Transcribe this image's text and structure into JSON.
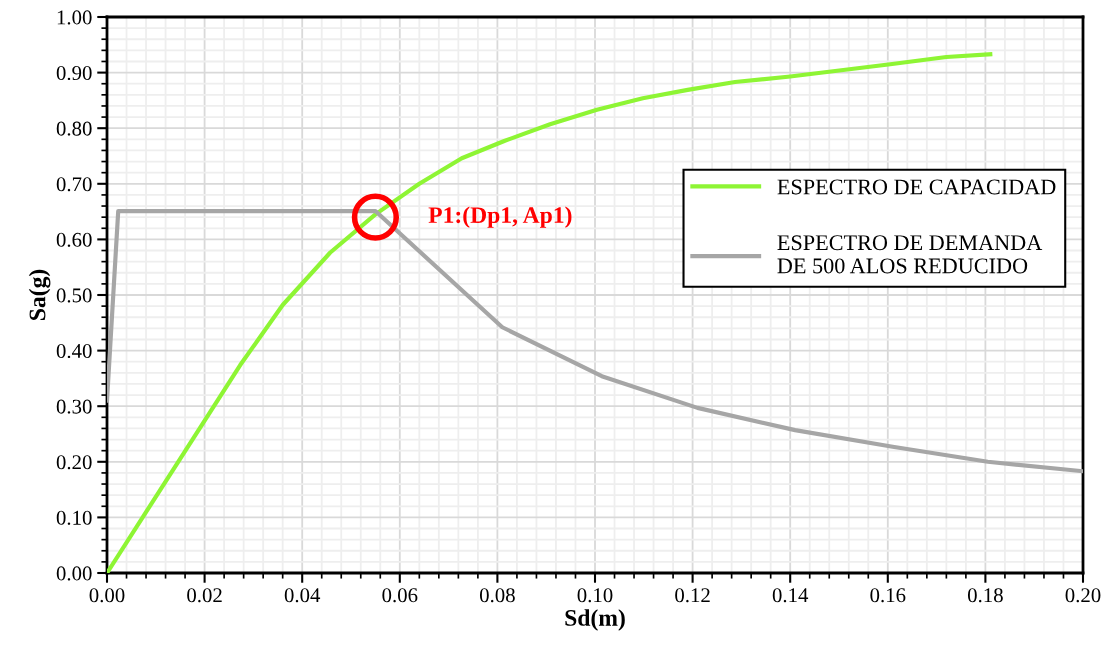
{
  "chart_data": {
    "type": "line",
    "xlabel": "Sd(m)",
    "ylabel": "Sa(g)",
    "xlim": [
      0,
      0.2
    ],
    "ylim": [
      0,
      1
    ],
    "xticks": [
      {
        "value": 0,
        "label": "0.00"
      },
      {
        "value": 0.02,
        "label": "0.02"
      },
      {
        "value": 0.04,
        "label": "0.04"
      },
      {
        "value": 0.06,
        "label": "0.06"
      },
      {
        "value": 0.08,
        "label": "0.08"
      },
      {
        "value": 0.1,
        "label": "0.10"
      },
      {
        "value": 0.12,
        "label": "0.12"
      },
      {
        "value": 0.14,
        "label": "0.14"
      },
      {
        "value": 0.16,
        "label": "0.16"
      },
      {
        "value": 0.18,
        "label": "0.18"
      },
      {
        "value": 0.2,
        "label": "0.20"
      }
    ],
    "yticks": [
      {
        "value": 0,
        "label": "0.00"
      },
      {
        "value": 0.1,
        "label": "0.10"
      },
      {
        "value": 0.2,
        "label": "0.20"
      },
      {
        "value": 0.3,
        "label": "0.30"
      },
      {
        "value": 0.4,
        "label": "0.40"
      },
      {
        "value": 0.5,
        "label": "0.50"
      },
      {
        "value": 0.6,
        "label": "0.60"
      },
      {
        "value": 0.7,
        "label": "0.70"
      },
      {
        "value": 0.8,
        "label": "0.80"
      },
      {
        "value": 0.9,
        "label": "0.90"
      },
      {
        "value": 1,
        "label": "1.00"
      }
    ],
    "grid": true,
    "legend": "right",
    "marker": "none",
    "line_style": "solid",
    "series": [
      {
        "name": "ESPECTRO DE CAPACIDAD",
        "color": "#8ef534",
        "x": [
          0,
          0.0273,
          0.036,
          0.0457,
          0.055,
          0.064,
          0.0727,
          0.0814,
          0.0908,
          0.1004,
          0.1098,
          0.119,
          0.1287,
          0.14,
          0.1605,
          0.172,
          0.181
        ],
        "values": [
          0,
          0.374,
          0.482,
          0.576,
          0.645,
          0.7,
          0.746,
          0.777,
          0.807,
          0.833,
          0.854,
          0.869,
          0.883,
          0.893,
          0.915,
          0.928,
          0.933
        ]
      },
      {
        "name": "ESPECTRO DE DEMANDA\nDE 500 ALOS REDUCIDO",
        "color": "#a6a6a6",
        "x": [
          0,
          0.0023,
          0.055,
          0.081,
          0.1014,
          0.121,
          0.141,
          0.161,
          0.1805,
          0.2
        ],
        "values": [
          0.31,
          0.651,
          0.651,
          0.442,
          0.354,
          0.297,
          0.257,
          0.227,
          0.2,
          0.183
        ]
      }
    ],
    "annotations": [
      {
        "text": "P1:(Dp1, Ap1)",
        "x": 0.055,
        "y": 0.64
      }
    ]
  }
}
